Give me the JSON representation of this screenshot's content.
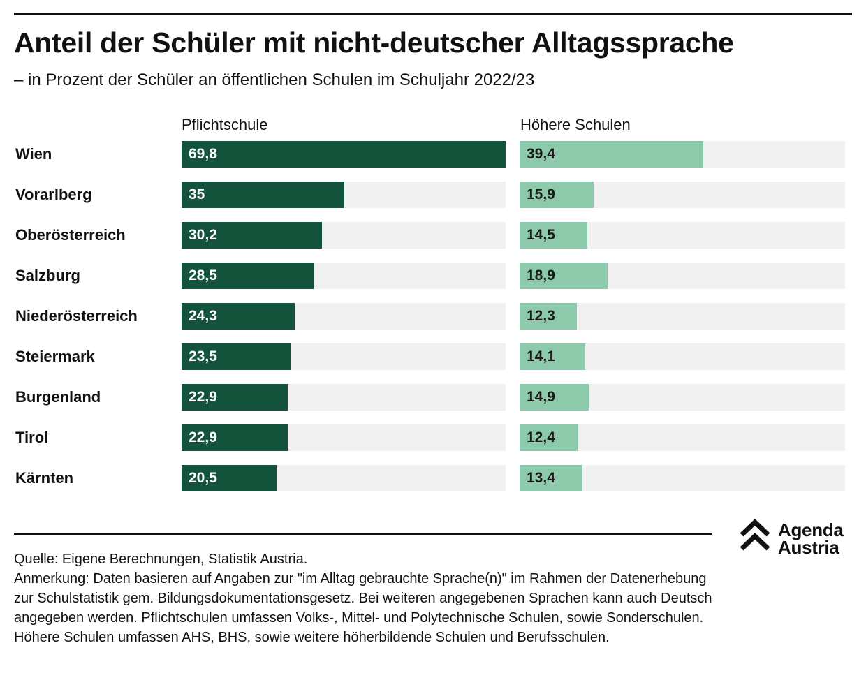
{
  "header": {
    "title": "Anteil der Schüler mit nicht-deutscher Alltagssprache",
    "subtitle": "– in Prozent der Schüler an öffentlichen Schulen im Schuljahr 2022/23"
  },
  "chart_data": {
    "type": "bar",
    "orientation": "horizontal",
    "categories": [
      "Wien",
      "Vorarlberg",
      "Oberösterreich",
      "Salzburg",
      "Niederösterreich",
      "Steiermark",
      "Burgenland",
      "Tirol",
      "Kärnten"
    ],
    "series": [
      {
        "name": "Pflichtschule",
        "values": [
          69.8,
          35,
          30.2,
          28.5,
          24.3,
          23.5,
          22.9,
          22.9,
          20.5
        ],
        "labels": [
          "69,8",
          "35",
          "30,2",
          "28,5",
          "24,3",
          "23,5",
          "22,9",
          "22,9",
          "20,5"
        ],
        "color": "#14533b",
        "label_color": "#ffffff",
        "xlim": [
          0,
          69.8
        ]
      },
      {
        "name": "Höhere Schulen",
        "values": [
          39.4,
          15.9,
          14.5,
          18.9,
          12.3,
          14.1,
          14.9,
          12.4,
          13.4
        ],
        "labels": [
          "39,4",
          "15,9",
          "14,5",
          "18,9",
          "12,3",
          "14,1",
          "14,9",
          "12,4",
          "13,4"
        ],
        "color": "#8dcaab",
        "label_color": "#1a1a1a",
        "xlim": [
          0,
          69.8
        ]
      }
    ],
    "track_color": "#f0f0f0",
    "grid": false,
    "legend": "column headers"
  },
  "footer": {
    "source": "Quelle: Eigene Berechnungen, Statistik Austria.",
    "note": "Anmerkung: Daten basieren auf Angaben zur \"im Alltag gebrauchte Sprache(n)\" im Rahmen der Datenerhebung zur Schulstatistik gem. Bildungsdokumentationsgesetz. Bei weiteren angegebenen Sprachen kann auch Deutsch angegeben werden. Pflichtschulen umfassen Volks-, Mittel- und Polytechnische Schulen, sowie Sonderschulen. Höhere Schulen umfassen AHS, BHS, sowie weitere höherbildende Schulen und Berufsschulen."
  },
  "logo": {
    "line1": "Agenda",
    "line2": "Austria",
    "icon": "double-chevron-up-icon"
  }
}
